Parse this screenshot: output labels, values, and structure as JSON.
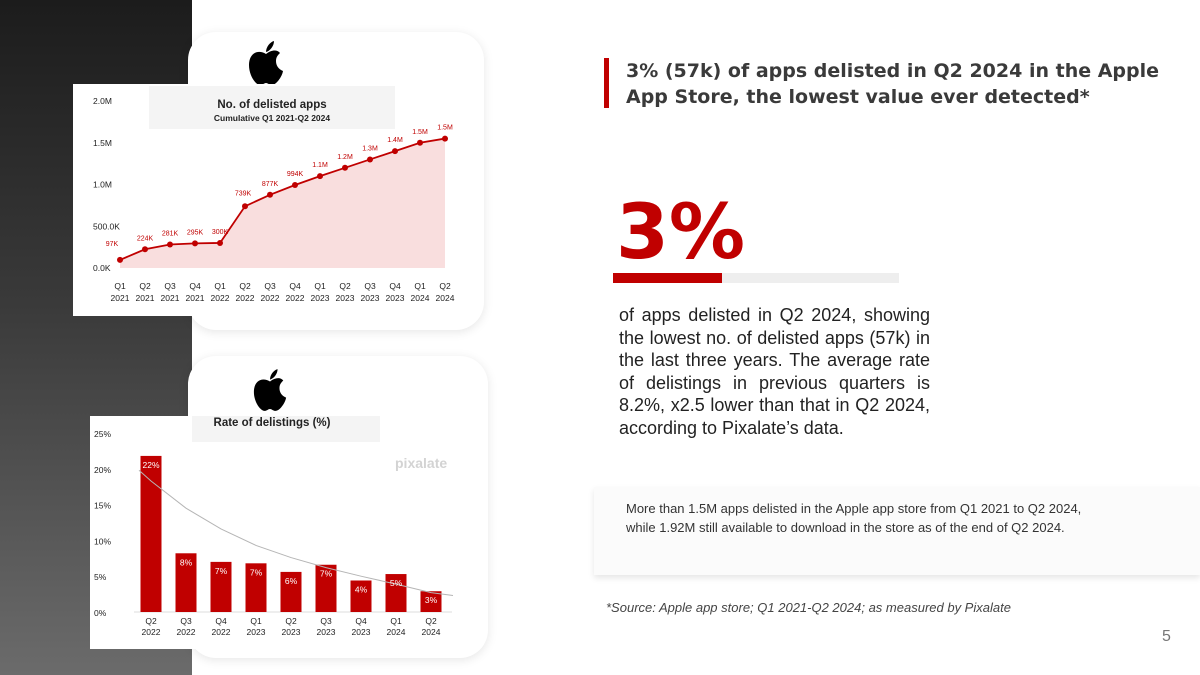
{
  "headline": {
    "line1": "3% (57k) of apps delisted in Q2 2024 in the Apple",
    "line2": "App Store,  the lowest value ever detected*"
  },
  "highlight": {
    "big_value": "3%",
    "progress_fraction": 0.38,
    "description": "of apps delisted in Q2 2024, showing the lowest no. of delisted apps (57k) in the last three years. The average rate of delistings in previous quarters is 8.2%, x2.5 lower than that in Q2 2024, according to Pixalate’s data."
  },
  "note": "More than 1.5M apps delisted in the Apple app store from Q1 2021 to Q2 2024, while 1.92M still available to download in the store as of the end of Q2 2024.",
  "source": "*Source: Apple app store; Q1 2021-Q2 2024; as measured by Pixalate",
  "page_number": "5",
  "brand": {
    "logo_icon": "apple-logo-icon",
    "watermark": "pixalate",
    "accent": "#c00000"
  },
  "chart_data": [
    {
      "type": "area",
      "title": "No. of delisted apps",
      "subtitle": "Cumulative Q1 2021-Q2 2024",
      "categories": [
        [
          "Q1",
          "2021"
        ],
        [
          "Q2",
          "2021"
        ],
        [
          "Q3",
          "2021"
        ],
        [
          "Q4",
          "2021"
        ],
        [
          "Q1",
          "2022"
        ],
        [
          "Q2",
          "2022"
        ],
        [
          "Q3",
          "2022"
        ],
        [
          "Q4",
          "2022"
        ],
        [
          "Q1",
          "2023"
        ],
        [
          "Q2",
          "2023"
        ],
        [
          "Q3",
          "2023"
        ],
        [
          "Q4",
          "2023"
        ],
        [
          "Q1",
          "2024"
        ],
        [
          "Q2",
          "2024"
        ]
      ],
      "values": [
        97000,
        224000,
        281000,
        295000,
        300000,
        739000,
        877000,
        994000,
        1100000,
        1200000,
        1300000,
        1400000,
        1500000,
        1550000
      ],
      "data_labels": [
        "97K",
        "224K",
        "281K",
        "295K",
        "300K",
        "739K",
        "877K",
        "994K",
        "1.1M",
        "1.2M",
        "1.3M",
        "1.4M",
        "1.5M",
        "1.5M"
      ],
      "ylim": [
        0,
        2000000
      ],
      "yticks": [
        {
          "value": 0,
          "label": "0.0K"
        },
        {
          "value": 500000,
          "label": "500.0K"
        },
        {
          "value": 1000000,
          "label": "1.0M"
        },
        {
          "value": 1500000,
          "label": "1.5M"
        },
        {
          "value": 2000000,
          "label": "2.0M"
        }
      ],
      "colors": {
        "line": "#c00000",
        "fill": "#f9dede"
      }
    },
    {
      "type": "bar",
      "title": "Rate of delistings (%)",
      "categories": [
        [
          "Q2",
          "2022"
        ],
        [
          "Q3",
          "2022"
        ],
        [
          "Q4",
          "2022"
        ],
        [
          "Q1",
          "2023"
        ],
        [
          "Q2",
          "2023"
        ],
        [
          "Q3",
          "2023"
        ],
        [
          "Q4",
          "2023"
        ],
        [
          "Q1",
          "2024"
        ],
        [
          "Q2",
          "2024"
        ]
      ],
      "values": [
        22,
        8,
        7,
        7,
        6,
        7,
        4,
        5,
        3
      ],
      "data_labels": [
        "22%",
        "8%",
        "7%",
        "7%",
        "6%",
        "7%",
        "4%",
        "5%",
        "3%"
      ],
      "display_values": [
        21.8,
        8.2,
        7.0,
        6.8,
        5.6,
        6.6,
        4.4,
        5.3,
        2.9
      ],
      "trendline": [
        18.3,
        14.5,
        11.6,
        9.3,
        7.6,
        6.2,
        5.0,
        3.9,
        2.7
      ],
      "ylim": [
        0,
        25
      ],
      "yticks": [
        {
          "value": 0,
          "label": "0%"
        },
        {
          "value": 5,
          "label": "5%"
        },
        {
          "value": 10,
          "label": "10%"
        },
        {
          "value": 15,
          "label": "15%"
        },
        {
          "value": 20,
          "label": "20%"
        },
        {
          "value": 25,
          "label": "25%"
        }
      ],
      "colors": {
        "bar": "#c00000",
        "trend": "#b5b5b5"
      }
    }
  ]
}
